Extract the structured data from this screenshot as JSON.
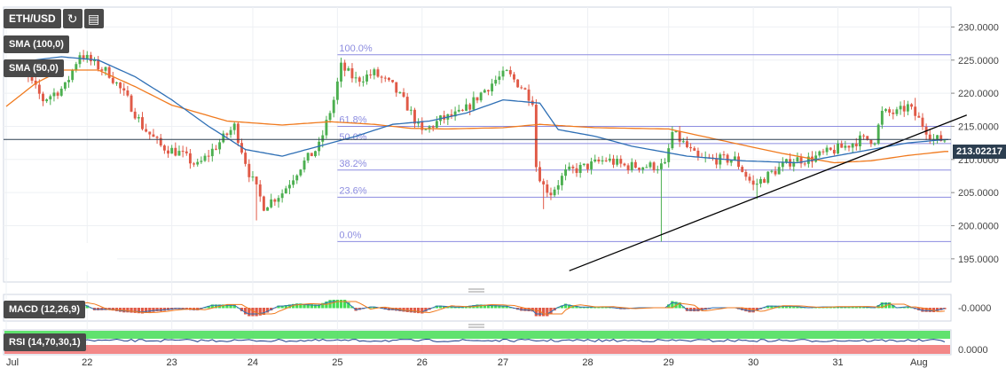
{
  "toolbar": {
    "symbol": "ETH/USD",
    "refresh_icon": "refresh-icon",
    "chart_type_icon": "candlestick-type-icon"
  },
  "indicators": {
    "sma100": "SMA (100,0)",
    "sma50": "SMA (50,0)",
    "macd": "MACD (12,26,9)",
    "rsi": "RSI (14,70,30,1)"
  },
  "price_label": "213.02217",
  "colors": {
    "bull": "#4caf50",
    "bear": "#e05a47",
    "sma100": "#2e6fb5",
    "sma50": "#f07a1e",
    "fib": "#8c8ce0",
    "trend": "#000000",
    "rsi_green": "#44dd55",
    "rsi_red": "#ee5555"
  },
  "chart_data": {
    "type": "candlestick",
    "y_axis": {
      "ticks": [
        "230.0000",
        "225.0000",
        "220.0000",
        "215.0000",
        "210.0000",
        "205.0000",
        "200.0000",
        "195.0000"
      ],
      "tick_values": [
        230,
        225,
        220,
        215,
        210,
        205,
        200,
        195
      ],
      "ylim": [
        191.5,
        233
      ]
    },
    "x_axis": {
      "ticks": [
        "Jul",
        "22",
        "23",
        "24",
        "25",
        "26",
        "27",
        "28",
        "29",
        "30",
        "31",
        "Aug"
      ],
      "tick_index": [
        0,
        22,
        45,
        67,
        90,
        113,
        135,
        158,
        180,
        203,
        226,
        248
      ]
    },
    "last_price": 213.02217,
    "fibonacci": [
      {
        "label": "100.0%",
        "value": 225.8
      },
      {
        "label": "61.8%",
        "value": 215.0
      },
      {
        "label": "50.0%",
        "value": 212.4
      },
      {
        "label": "38.2%",
        "value": 208.4
      },
      {
        "label": "23.6%",
        "value": 204.3
      },
      {
        "label": "0.0%",
        "value": 197.6
      }
    ],
    "fib_start_index": 90,
    "trendline": {
      "from": {
        "index": 153,
        "value": 193.2
      },
      "to": {
        "index": 261,
        "value": 216.7
      }
    },
    "close_anchors": [
      [
        0,
        224
      ],
      [
        5,
        223
      ],
      [
        10,
        219
      ],
      [
        16,
        221
      ],
      [
        20,
        226
      ],
      [
        25,
        224
      ],
      [
        28,
        223
      ],
      [
        33,
        219
      ],
      [
        37,
        215
      ],
      [
        42,
        212
      ],
      [
        47,
        211
      ],
      [
        52,
        209
      ],
      [
        57,
        212
      ],
      [
        62,
        215
      ],
      [
        66,
        208
      ],
      [
        70,
        203
      ],
      [
        75,
        205
      ],
      [
        80,
        209
      ],
      [
        85,
        212
      ],
      [
        89,
        219
      ],
      [
        91,
        224
      ],
      [
        95,
        222
      ],
      [
        100,
        223
      ],
      [
        105,
        221
      ],
      [
        109,
        218
      ],
      [
        113,
        214
      ],
      [
        118,
        216
      ],
      [
        124,
        217
      ],
      [
        129,
        220
      ],
      [
        133,
        222
      ],
      [
        136,
        223
      ],
      [
        140,
        221
      ],
      [
        143,
        219
      ],
      [
        144,
        209
      ],
      [
        146,
        206
      ],
      [
        148,
        205
      ],
      [
        152,
        208
      ],
      [
        158,
        209
      ],
      [
        163,
        210
      ],
      [
        168,
        209
      ],
      [
        173,
        209
      ],
      [
        179,
        209
      ],
      [
        181,
        214
      ],
      [
        183,
        213
      ],
      [
        188,
        210
      ],
      [
        193,
        210
      ],
      [
        198,
        210
      ],
      [
        203,
        206
      ],
      [
        208,
        208
      ],
      [
        214,
        210
      ],
      [
        218,
        210
      ],
      [
        223,
        211
      ],
      [
        228,
        212
      ],
      [
        232,
        213
      ],
      [
        236,
        213
      ],
      [
        238,
        217
      ],
      [
        242,
        217
      ],
      [
        245,
        218
      ],
      [
        248,
        216
      ],
      [
        252,
        213
      ],
      [
        255,
        213
      ]
    ],
    "wick_events": [
      {
        "index": 178,
        "low": 197.6
      },
      {
        "index": 146,
        "low": 202.5
      },
      {
        "index": 68,
        "low": 200.8
      },
      {
        "index": 204,
        "low": 204.0
      },
      {
        "index": 247,
        "high": 219.3
      }
    ],
    "sma50": [
      [
        0,
        218
      ],
      [
        8,
        221.5
      ],
      [
        15,
        223.5
      ],
      [
        25,
        223.5
      ],
      [
        35,
        221
      ],
      [
        45,
        218.2
      ],
      [
        60,
        215.8
      ],
      [
        75,
        215.2
      ],
      [
        88,
        215.7
      ],
      [
        100,
        215.3
      ],
      [
        110,
        214.7
      ],
      [
        120,
        214.6
      ],
      [
        135,
        214.8
      ],
      [
        145,
        215.3
      ],
      [
        160,
        214.8
      ],
      [
        180,
        214.6
      ],
      [
        195,
        212.8
      ],
      [
        210,
        211
      ],
      [
        225,
        209.5
      ],
      [
        235,
        209.8
      ],
      [
        245,
        210.6
      ],
      [
        255,
        211.2
      ]
    ],
    "sma100": [
      [
        0,
        224.5
      ],
      [
        15,
        225.5
      ],
      [
        25,
        225
      ],
      [
        35,
        222.5
      ],
      [
        45,
        219
      ],
      [
        55,
        215
      ],
      [
        65,
        211.5
      ],
      [
        75,
        210.5
      ],
      [
        85,
        212
      ],
      [
        95,
        213.5
      ],
      [
        105,
        215.3
      ],
      [
        115,
        215.8
      ],
      [
        125,
        217
      ],
      [
        135,
        219
      ],
      [
        145,
        218.5
      ],
      [
        150,
        214.5
      ],
      [
        160,
        213.5
      ],
      [
        170,
        212
      ],
      [
        185,
        210.5
      ],
      [
        200,
        209.8
      ],
      [
        215,
        209.5
      ],
      [
        225,
        210.5
      ],
      [
        235,
        211.5
      ],
      [
        245,
        212.5
      ],
      [
        255,
        213
      ]
    ],
    "macd": {
      "label": "-0.0000",
      "range": [
        -1,
        1
      ],
      "signal_lag": 4
    },
    "rsi": {
      "label": "0.0000",
      "range": [
        0,
        1
      ]
    }
  }
}
